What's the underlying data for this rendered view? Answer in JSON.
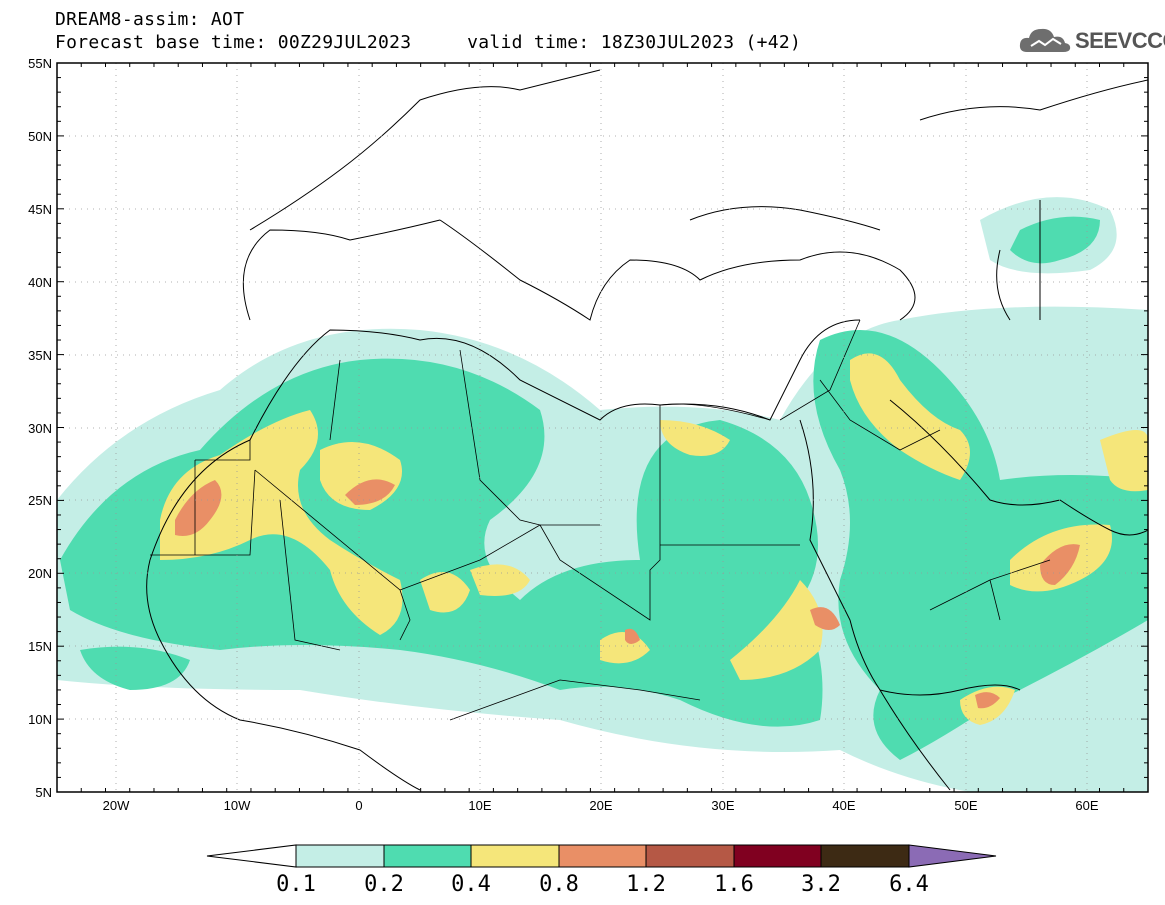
{
  "header": {
    "line1": "DREAM8-assim: AOT",
    "line2": "Forecast base time: 00Z29JUL2023     valid time: 18Z30JUL2023 (+42)"
  },
  "logo": {
    "text": "SEEVCCC",
    "icon": "cloud-icon"
  },
  "map": {
    "lon_range": [
      -25,
      65
    ],
    "lat_range": [
      5,
      55
    ],
    "lon_labels": [
      "20W",
      "10W",
      "0",
      "10E",
      "20E",
      "30E",
      "40E",
      "50E",
      "60E"
    ],
    "lat_labels": [
      "55N",
      "50N",
      "45N",
      "40N",
      "35N",
      "30N",
      "25N",
      "20N",
      "15N",
      "10N",
      "5N"
    ]
  },
  "colorbar": {
    "labels": [
      "0.1",
      "0.2",
      "0.4",
      "0.8",
      "1.2",
      "1.6",
      "3.2",
      "6.4"
    ],
    "colors": [
      "#ffffff",
      "#c4eee6",
      "#4fdcb0",
      "#f5e67a",
      "#e98f66",
      "#b55845",
      "#800020",
      "#3d2a14",
      "#8b6bb5"
    ]
  }
}
